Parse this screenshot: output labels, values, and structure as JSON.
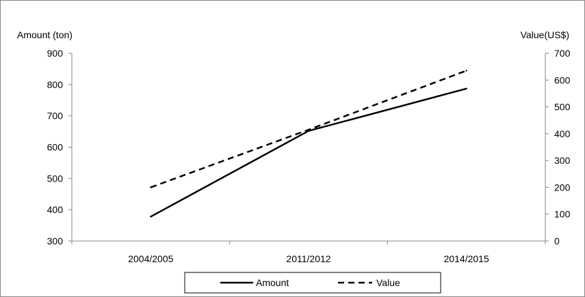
{
  "chart_data": {
    "type": "line",
    "categories": [
      "2004/2005",
      "2011/2012",
      "2014/2015"
    ],
    "left_axis": {
      "label": "Amount (ton)",
      "min": 300,
      "max": 900,
      "ticks": [
        "300",
        "400",
        "500",
        "600",
        "700",
        "800",
        "900"
      ]
    },
    "right_axis": {
      "label": "Value(US$)",
      "min": 0,
      "max": 700,
      "ticks": [
        "0",
        "100",
        "200",
        "300",
        "400",
        "500",
        "600",
        "700"
      ]
    },
    "series": [
      {
        "name": "Amount",
        "axis": "left",
        "style": "solid",
        "values": [
          378,
          652,
          787
        ]
      },
      {
        "name": "Value",
        "axis": "right",
        "style": "dashed",
        "values": [
          200,
          415,
          635
        ]
      }
    ],
    "legend": {
      "position": "bottom"
    },
    "grid": false,
    "colors": {
      "line": "#000000",
      "border": "#868686"
    }
  }
}
